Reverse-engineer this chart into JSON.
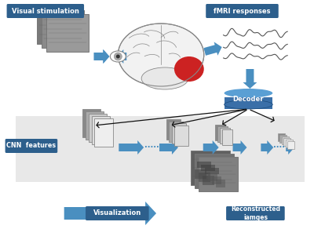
{
  "bg_color": "#ffffff",
  "label_vs": "Visual stimulation",
  "label_fmri": "fMRI responses",
  "label_cnn": "CNN  features",
  "label_decoder": "Decoder",
  "label_vis": "Visualization",
  "label_recon": "Reconstructed\niamges",
  "box_blue": "#2d5f8c",
  "arrow_blue": "#4a8fc0",
  "arrow_blue2": "#5ba3d9",
  "band_color": "#cccccc",
  "band_alpha": 0.45,
  "decoder_blue": "#3a6fa8",
  "decoder_top": "#5a9fd4",
  "brain_fill": "#f2f2f2",
  "brain_edge": "#888888",
  "red_cortex": "#cc2222",
  "img_grays": [
    "#7a7a7a",
    "#8a8a8a",
    "#9a9a9a"
  ],
  "sig_color": "#555555",
  "recon_grays": [
    "#606060",
    "#707070",
    "#808080"
  ],
  "feat_colors": [
    "#888888",
    "#aaaaaa",
    "#cccccc",
    "#dddddd",
    "#eeeeee"
  ],
  "black_arrow": "#111111"
}
